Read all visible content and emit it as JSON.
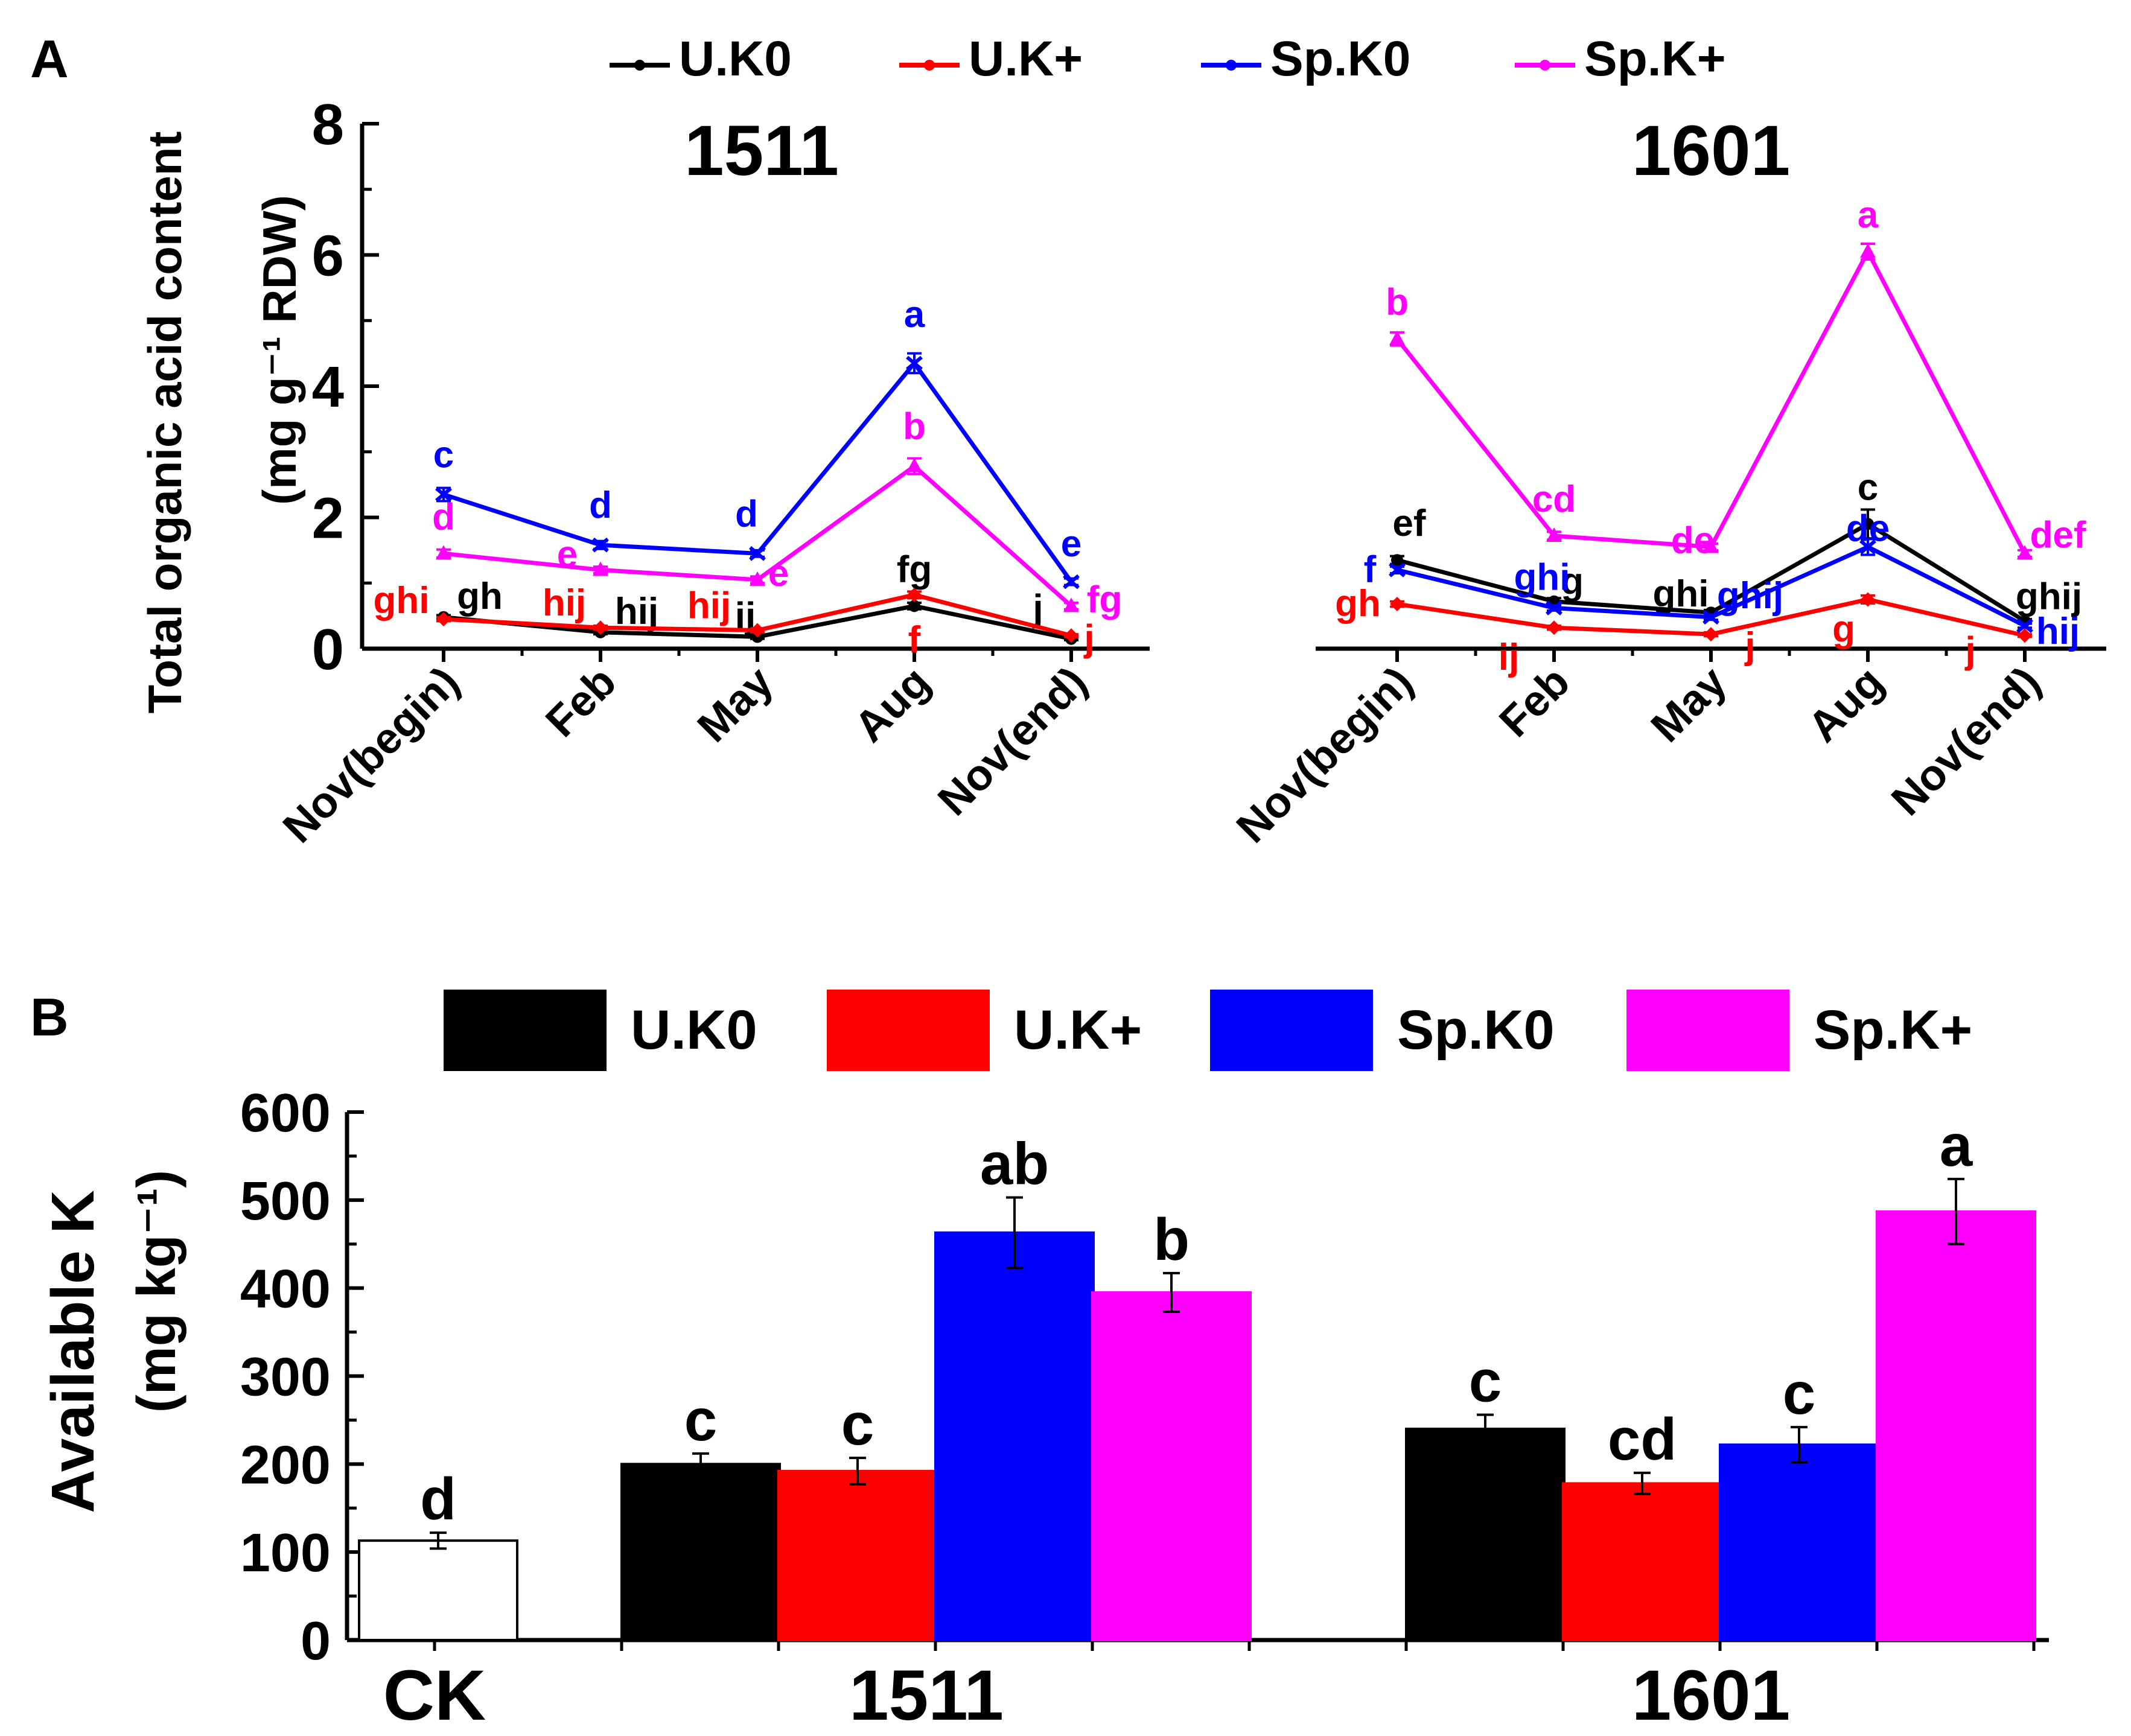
{
  "chart_data": [
    {
      "type": "line",
      "panel": "A",
      "ylabel": "Total organic acid content",
      "ylabel_unit": "(mg g⁻¹ RDW)",
      "ylim": [
        0,
        8
      ],
      "yticks": [
        "0",
        "2",
        "4",
        "6",
        "8"
      ],
      "categories": [
        "Nov(begin)",
        "Feb",
        "May",
        "Aug",
        "Nov(end)"
      ],
      "legend_position": "top",
      "colors": {
        "U.K0": "#000000",
        "U.K+": "#ff0000",
        "Sp.K0": "#0000ff",
        "Sp.K+": "#ff00ff"
      },
      "series_names": [
        "U.K0",
        "U.K+",
        "Sp.K0",
        "Sp.K+"
      ],
      "groups": [
        {
          "title": "1511",
          "series": [
            {
              "name": "U.K0",
              "values": [
                0.48,
                0.25,
                0.18,
                0.65,
                0.15
              ],
              "errors": [
                0.03,
                0.03,
                0.03,
                0.05,
                0.02
              ],
              "labels": [
                "gh",
                "hij",
                "ij",
                "fg",
                "j"
              ]
            },
            {
              "name": "U.K+",
              "values": [
                0.45,
                0.32,
                0.28,
                0.82,
                0.2
              ],
              "errors": [
                0.03,
                0.03,
                0.03,
                0.05,
                0.02
              ],
              "labels": [
                "ghi",
                "hij",
                "hij",
                "f",
                "j"
              ]
            },
            {
              "name": "Sp.K0",
              "values": [
                2.35,
                1.58,
                1.45,
                4.35,
                1.02
              ],
              "errors": [
                0.1,
                0.06,
                0.05,
                0.15,
                0.05
              ],
              "labels": [
                "c",
                "d",
                "d",
                "a",
                "e"
              ]
            },
            {
              "name": "Sp.K+",
              "values": [
                1.45,
                1.2,
                1.05,
                2.78,
                0.65
              ],
              "errors": [
                0.06,
                0.05,
                0.05,
                0.12,
                0.05
              ],
              "labels": [
                "d",
                "e",
                "e",
                "b",
                "fg"
              ]
            }
          ]
        },
        {
          "title": "1601",
          "series": [
            {
              "name": "U.K0",
              "values": [
                1.35,
                0.72,
                0.55,
                1.9,
                0.42
              ],
              "errors": [
                0.06,
                0.05,
                0.04,
                0.22,
                0.03
              ],
              "labels": [
                "ef",
                "g",
                "ghi",
                "c",
                "ghij"
              ]
            },
            {
              "name": "U.K+",
              "values": [
                0.68,
                0.32,
                0.22,
                0.75,
                0.2
              ],
              "errors": [
                0.04,
                0.03,
                0.03,
                0.06,
                0.02
              ],
              "labels": [
                "gh",
                "ij",
                "j",
                "g",
                "j"
              ]
            },
            {
              "name": "Sp.K0",
              "values": [
                1.2,
                0.62,
                0.48,
                1.55,
                0.35
              ],
              "errors": [
                0.05,
                0.04,
                0.04,
                0.12,
                0.03
              ],
              "labels": [
                "f",
                "ghi",
                "ghij",
                "de",
                "hij"
              ]
            },
            {
              "name": "Sp.K+",
              "values": [
                4.72,
                1.72,
                1.55,
                6.05,
                1.45
              ],
              "errors": [
                0.1,
                0.06,
                0.05,
                0.12,
                0.05
              ],
              "labels": [
                "b",
                "cd",
                "de",
                "a",
                "def"
              ]
            }
          ]
        }
      ]
    },
    {
      "type": "bar",
      "panel": "B",
      "ylabel": "Available K",
      "ylabel_unit": "(mg kg⁻¹)",
      "ylim": [
        0,
        600
      ],
      "yticks": [
        "0",
        "100",
        "200",
        "300",
        "400",
        "500",
        "600"
      ],
      "categories": [
        "CK",
        "1511",
        "1601"
      ],
      "legend_position": "top",
      "colors": {
        "CK": "#ffffff",
        "U.K0": "#000000",
        "U.K+": "#ff0000",
        "Sp.K0": "#0000ff",
        "Sp.K+": "#ff00ff"
      },
      "series_names": [
        "U.K0",
        "U.K+",
        "Sp.K0",
        "Sp.K+"
      ],
      "control": {
        "category": "CK",
        "value": 113,
        "error": 9,
        "label": "d"
      },
      "series": [
        {
          "name": "U.K0",
          "values": [
            null,
            200,
            240
          ],
          "errors": [
            null,
            12,
            16
          ],
          "labels": [
            "",
            "c",
            "c"
          ]
        },
        {
          "name": "U.K+",
          "values": [
            null,
            192,
            178
          ],
          "errors": [
            null,
            15,
            12
          ],
          "labels": [
            "",
            "c",
            "cd"
          ]
        },
        {
          "name": "Sp.K0",
          "values": [
            null,
            463,
            222
          ],
          "errors": [
            null,
            40,
            20
          ],
          "labels": [
            "",
            "ab",
            "c"
          ]
        },
        {
          "name": "Sp.K+",
          "values": [
            null,
            395,
            487
          ],
          "errors": [
            null,
            22,
            37
          ],
          "labels": [
            "",
            "b",
            "a"
          ]
        }
      ]
    }
  ]
}
